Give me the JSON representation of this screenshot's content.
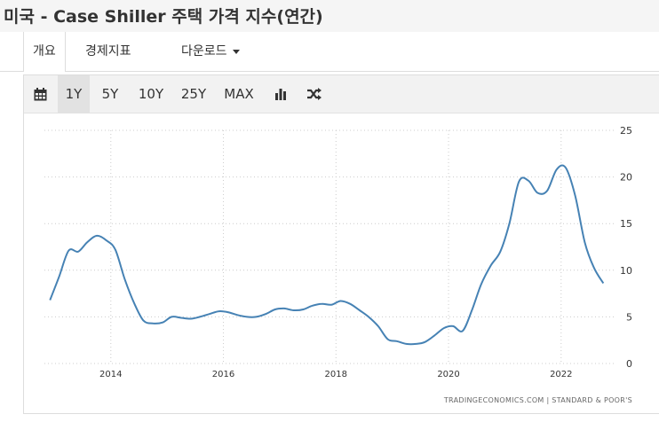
{
  "header": {
    "title": "미국 - Case Shiller 주택 가격 지수(연간)"
  },
  "nav": {
    "tabs": [
      {
        "label": "개요",
        "active": true
      },
      {
        "label": "경제지표",
        "active": false
      },
      {
        "label": "다운로드",
        "active": false,
        "dropdown": true
      }
    ]
  },
  "toolbar": {
    "calendar_icon": "calendar-icon",
    "ranges": [
      "1Y",
      "5Y",
      "10Y",
      "25Y",
      "MAX"
    ],
    "active_range": "1Y",
    "chart_type_icon": "bar-chart-icon",
    "compare_icon": "shuffle-icon"
  },
  "colors": {
    "line": "#4682b4",
    "grid": "#cccccc",
    "toolbar_bg": "#f2f2f2"
  },
  "credit": {
    "text": "TRADINGECONOMICS.COM  |  STANDARD & POOR'S"
  },
  "chart_data": {
    "type": "line",
    "title": "",
    "xlabel": "",
    "ylabel": "",
    "ylim": [
      0,
      25
    ],
    "yticks": [
      0,
      5,
      10,
      15,
      20,
      25
    ],
    "xticks": [
      "2014",
      "2016",
      "2018",
      "2020",
      "2022"
    ],
    "grid": true,
    "series": [
      {
        "x": [
          2012.92,
          2013.08,
          2013.25,
          2013.42,
          2013.58,
          2013.75,
          2013.92,
          2014.08,
          2014.25,
          2014.42,
          2014.58,
          2014.75,
          2014.92,
          2015.08,
          2015.25,
          2015.42,
          2015.58,
          2015.75,
          2015.92,
          2016.08,
          2016.25,
          2016.42,
          2016.58,
          2016.75,
          2016.92,
          2017.08,
          2017.25,
          2017.42,
          2017.58,
          2017.75,
          2017.92,
          2018.08,
          2018.25,
          2018.42,
          2018.58,
          2018.75,
          2018.92,
          2019.08,
          2019.25,
          2019.42,
          2019.58,
          2019.75,
          2019.92,
          2020.08,
          2020.25,
          2020.42,
          2020.58,
          2020.75,
          2020.92,
          2021.08,
          2021.25,
          2021.42,
          2021.58,
          2021.75,
          2021.92,
          2022.08,
          2022.25,
          2022.42,
          2022.58,
          2022.75
        ],
        "y": [
          6.8,
          9.3,
          12.1,
          12.0,
          13.0,
          13.7,
          13.2,
          12.2,
          9.0,
          6.4,
          4.6,
          4.3,
          4.4,
          5.0,
          4.9,
          4.8,
          5.0,
          5.3,
          5.6,
          5.5,
          5.2,
          5.0,
          5.0,
          5.3,
          5.8,
          5.9,
          5.7,
          5.8,
          6.2,
          6.4,
          6.3,
          6.7,
          6.4,
          5.7,
          5.0,
          4.0,
          2.6,
          2.4,
          2.1,
          2.1,
          2.3,
          3.0,
          3.8,
          4.0,
          3.5,
          5.8,
          8.5,
          10.5,
          12.0,
          15.0,
          19.5,
          19.6,
          18.3,
          18.5,
          20.8,
          21.0,
          18.0,
          13.0,
          10.3,
          8.6
        ]
      }
    ]
  }
}
